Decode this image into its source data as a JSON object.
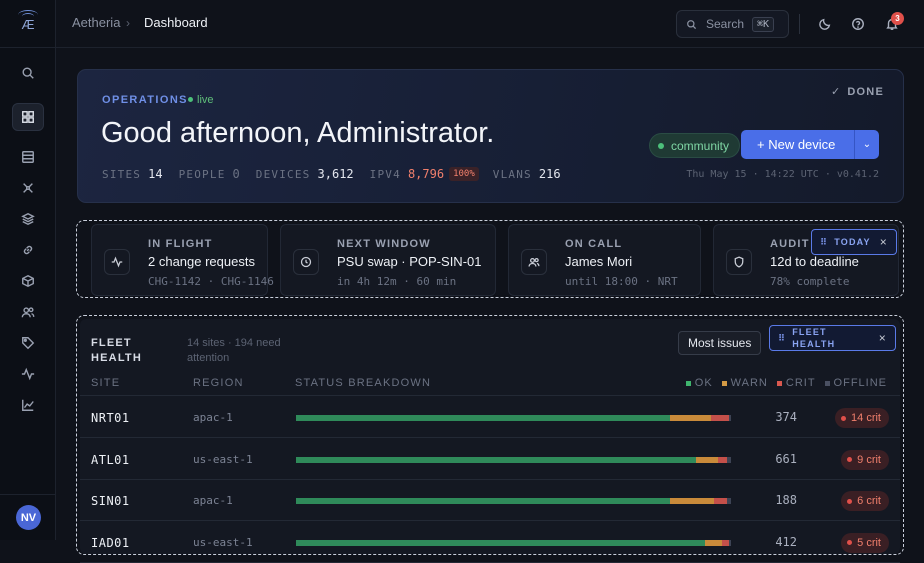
{
  "app": {
    "logo": "Æ",
    "breadcrumb_root": "Aetheria",
    "breadcrumb_sep": "›",
    "breadcrumb_current": "Dashboard"
  },
  "topbar": {
    "search_label": "Search",
    "search_shortcut": "⌘K",
    "notification_count": "3"
  },
  "sidebar": {
    "items": [
      {
        "icon": "search-icon"
      },
      {
        "icon": "grid-icon",
        "active": true
      },
      {
        "icon": "database-icon"
      },
      {
        "icon": "network-icon"
      },
      {
        "icon": "layers-icon"
      },
      {
        "icon": "link-icon"
      },
      {
        "icon": "box-icon"
      },
      {
        "icon": "users-icon"
      },
      {
        "icon": "tag-icon"
      },
      {
        "icon": "activity-icon"
      },
      {
        "icon": "chart-icon"
      }
    ],
    "user_initials": "NV"
  },
  "hero": {
    "eyebrow": "OPERATIONS",
    "live": "live",
    "greeting": "Good afternoon, Administrator.",
    "done_label": "DONE",
    "stats": {
      "sites_label": "SITES",
      "sites": "14",
      "people_label": "PEOPLE",
      "people": "0",
      "devices_label": "DEVICES",
      "devices": "3,612",
      "ipv4_label": "IPV4",
      "ipv4": "8,796",
      "ipv4_pct": "100%",
      "vlans_label": "VLANS",
      "vlans": "216"
    },
    "community": "community",
    "new_device": "+ New device",
    "timestamp": "Thu May 15 · 14:22 UTC · v0.41.2"
  },
  "cards": [
    {
      "label": "IN FLIGHT",
      "value": "2 change requests",
      "sub": "CHG-1142 · CHG-1146",
      "icon": "activity-icon"
    },
    {
      "label": "NEXT WINDOW",
      "value": "PSU swap · POP-SIN-01",
      "sub": "in 4h 12m · 60 min",
      "icon": "clock-icon"
    },
    {
      "label": "ON CALL",
      "value": "James Mori",
      "sub": "until 18:00 · NRT",
      "icon": "users-icon"
    },
    {
      "label": "AUDIT",
      "value": "12d to deadline",
      "sub": "78% complete",
      "icon": "shield-icon"
    }
  ],
  "today_chip": "TODAY",
  "fleet": {
    "title": "FLEET HEALTH",
    "subtitle": "14 sites · 194 need attention",
    "sort_button": "Most issues",
    "chip": "FLEET HEALTH",
    "columns": {
      "site": "SITE",
      "region": "REGION",
      "status": "STATUS BREAKDOWN"
    },
    "legend": {
      "ok": "OK",
      "warn": "WARN",
      "crit": "CRIT",
      "offline": "OFFLINE"
    },
    "colors": {
      "ok": "#2f8a5a",
      "warn": "#c98a3a",
      "crit": "#c4504a",
      "offline": "#3d4354"
    },
    "rows": [
      {
        "site": "NRT01",
        "region": "apac-1",
        "total": "374",
        "crit_label": "14 crit",
        "ok": 0.86,
        "warn": 0.095,
        "crit": 0.04,
        "off": 0.005
      },
      {
        "site": "ATL01",
        "region": "us-east-1",
        "total": "661",
        "crit_label": "9 crit",
        "ok": 0.92,
        "warn": 0.05,
        "crit": 0.02,
        "off": 0.01
      },
      {
        "site": "SIN01",
        "region": "apac-1",
        "total": "188",
        "crit_label": "6 crit",
        "ok": 0.86,
        "warn": 0.1,
        "crit": 0.03,
        "off": 0.01
      },
      {
        "site": "IAD01",
        "region": "us-east-1",
        "total": "412",
        "crit_label": "5 crit",
        "ok": 0.94,
        "warn": 0.04,
        "crit": 0.015,
        "off": 0.005
      }
    ]
  }
}
